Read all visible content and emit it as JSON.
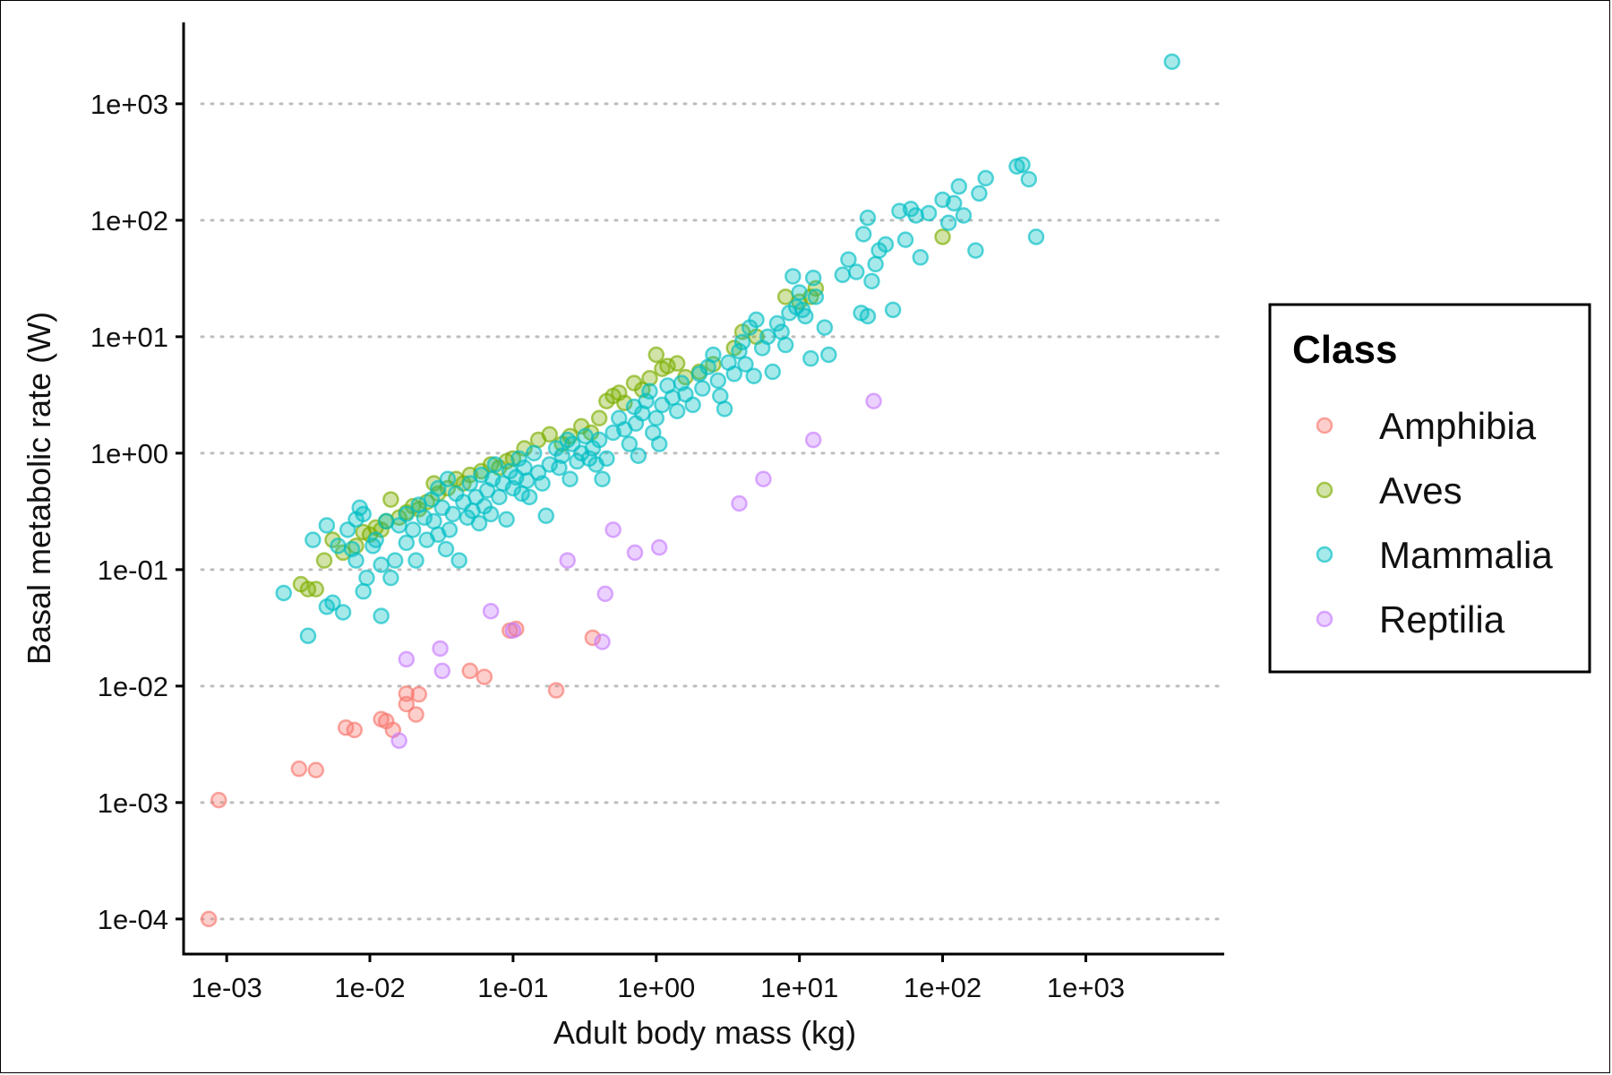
{
  "chart_data": {
    "type": "scatter",
    "xlabel": "Adult body mass (kg)",
    "ylabel": "Basal metabolic rate (W)",
    "x_scale": "log10",
    "y_scale": "log10",
    "xlim": [
      0.0005,
      9000
    ],
    "ylim": [
      5e-05,
      5000
    ],
    "x_ticks": [
      "1e-03",
      "1e-02",
      "1e-01",
      "1e+00",
      "1e+01",
      "1e+02",
      "1e+03"
    ],
    "x_tick_values": [
      0.001,
      0.01,
      0.1,
      1,
      10,
      100,
      1000
    ],
    "y_ticks": [
      "1e-04",
      "1e-03",
      "1e-02",
      "1e-01",
      "1e+00",
      "1e+01",
      "1e+02",
      "1e+03"
    ],
    "y_tick_values": [
      0.0001,
      0.001,
      0.01,
      0.1,
      1,
      10,
      100,
      1000
    ],
    "grid": "horizontal dotted",
    "legend": {
      "title": "Class",
      "placement": "right",
      "entries": [
        "Amphibia",
        "Aves",
        "Mammalia",
        "Reptilia"
      ]
    },
    "series": [
      {
        "name": "Amphibia",
        "color": "#F8766D",
        "points": [
          [
            0.00075,
            0.0001
          ],
          [
            0.00088,
            0.00105
          ],
          [
            0.0032,
            0.00195
          ],
          [
            0.0042,
            0.0019
          ],
          [
            0.0068,
            0.0044
          ],
          [
            0.0078,
            0.0042
          ],
          [
            0.012,
            0.0052
          ],
          [
            0.013,
            0.005
          ],
          [
            0.0145,
            0.0042
          ],
          [
            0.018,
            0.0086
          ],
          [
            0.018,
            0.007
          ],
          [
            0.021,
            0.0057
          ],
          [
            0.022,
            0.0085
          ],
          [
            0.05,
            0.0135
          ],
          [
            0.063,
            0.012
          ],
          [
            0.105,
            0.031
          ],
          [
            0.095,
            0.03
          ],
          [
            0.2,
            0.0092
          ],
          [
            0.36,
            0.026
          ]
        ]
      },
      {
        "name": "Aves",
        "color": "#7CAE00",
        "points": [
          [
            0.0033,
            0.075
          ],
          [
            0.0037,
            0.068
          ],
          [
            0.0042,
            0.068
          ],
          [
            0.0048,
            0.12
          ],
          [
            0.0055,
            0.18
          ],
          [
            0.0065,
            0.14
          ],
          [
            0.008,
            0.16
          ],
          [
            0.009,
            0.21
          ],
          [
            0.01,
            0.2
          ],
          [
            0.011,
            0.23
          ],
          [
            0.012,
            0.22
          ],
          [
            0.013,
            0.26
          ],
          [
            0.014,
            0.4
          ],
          [
            0.016,
            0.28
          ],
          [
            0.018,
            0.31
          ],
          [
            0.02,
            0.35
          ],
          [
            0.022,
            0.33
          ],
          [
            0.025,
            0.38
          ],
          [
            0.028,
            0.55
          ],
          [
            0.03,
            0.45
          ],
          [
            0.035,
            0.5
          ],
          [
            0.04,
            0.6
          ],
          [
            0.045,
            0.55
          ],
          [
            0.05,
            0.65
          ],
          [
            0.06,
            0.7
          ],
          [
            0.07,
            0.8
          ],
          [
            0.08,
            0.75
          ],
          [
            0.09,
            0.85
          ],
          [
            0.1,
            0.9
          ],
          [
            0.12,
            1.1
          ],
          [
            0.15,
            1.3
          ],
          [
            0.18,
            1.45
          ],
          [
            0.22,
            1.2
          ],
          [
            0.25,
            1.4
          ],
          [
            0.3,
            1.7
          ],
          [
            0.35,
            1.5
          ],
          [
            0.4,
            2.0
          ],
          [
            0.45,
            2.8
          ],
          [
            0.5,
            3.1
          ],
          [
            0.55,
            3.3
          ],
          [
            0.6,
            2.7
          ],
          [
            0.7,
            4.0
          ],
          [
            0.8,
            3.5
          ],
          [
            0.9,
            4.4
          ],
          [
            1.0,
            7.0
          ],
          [
            1.1,
            5.3
          ],
          [
            1.2,
            5.6
          ],
          [
            1.4,
            5.9
          ],
          [
            1.6,
            4.5
          ],
          [
            2.0,
            5.0
          ],
          [
            2.5,
            5.8
          ],
          [
            3.5,
            8.0
          ],
          [
            4.0,
            11.0
          ],
          [
            5.0,
            10.0
          ],
          [
            8.0,
            22.0
          ],
          [
            10.0,
            20.0
          ],
          [
            12.0,
            22.0
          ],
          [
            13.0,
            26.0
          ],
          [
            100.0,
            72.0
          ]
        ]
      },
      {
        "name": "Mammalia",
        "color": "#00BFC4",
        "points": [
          [
            0.0025,
            0.063
          ],
          [
            0.0037,
            0.027
          ],
          [
            0.004,
            0.18
          ],
          [
            0.005,
            0.24
          ],
          [
            0.005,
            0.048
          ],
          [
            0.0055,
            0.052
          ],
          [
            0.006,
            0.16
          ],
          [
            0.0065,
            0.043
          ],
          [
            0.007,
            0.22
          ],
          [
            0.0075,
            0.15
          ],
          [
            0.008,
            0.27
          ],
          [
            0.008,
            0.12
          ],
          [
            0.0085,
            0.34
          ],
          [
            0.009,
            0.065
          ],
          [
            0.009,
            0.3
          ],
          [
            0.0095,
            0.085
          ],
          [
            0.0105,
            0.16
          ],
          [
            0.011,
            0.18
          ],
          [
            0.012,
            0.04
          ],
          [
            0.012,
            0.11
          ],
          [
            0.013,
            0.26
          ],
          [
            0.014,
            0.085
          ],
          [
            0.015,
            0.12
          ],
          [
            0.016,
            0.24
          ],
          [
            0.018,
            0.3
          ],
          [
            0.018,
            0.17
          ],
          [
            0.02,
            0.22
          ],
          [
            0.021,
            0.12
          ],
          [
            0.022,
            0.36
          ],
          [
            0.024,
            0.28
          ],
          [
            0.025,
            0.18
          ],
          [
            0.027,
            0.4
          ],
          [
            0.028,
            0.26
          ],
          [
            0.03,
            0.2
          ],
          [
            0.03,
            0.5
          ],
          [
            0.032,
            0.34
          ],
          [
            0.034,
            0.15
          ],
          [
            0.035,
            0.6
          ],
          [
            0.036,
            0.22
          ],
          [
            0.038,
            0.3
          ],
          [
            0.04,
            0.45
          ],
          [
            0.042,
            0.12
          ],
          [
            0.045,
            0.38
          ],
          [
            0.048,
            0.28
          ],
          [
            0.05,
            0.55
          ],
          [
            0.052,
            0.32
          ],
          [
            0.055,
            0.42
          ],
          [
            0.058,
            0.25
          ],
          [
            0.06,
            0.65
          ],
          [
            0.063,
            0.35
          ],
          [
            0.066,
            0.48
          ],
          [
            0.07,
            0.3
          ],
          [
            0.072,
            0.6
          ],
          [
            0.075,
            0.8
          ],
          [
            0.08,
            0.42
          ],
          [
            0.085,
            0.55
          ],
          [
            0.09,
            0.27
          ],
          [
            0.095,
            0.7
          ],
          [
            0.1,
            0.5
          ],
          [
            0.105,
            0.62
          ],
          [
            0.11,
            0.9
          ],
          [
            0.115,
            0.45
          ],
          [
            0.12,
            0.75
          ],
          [
            0.125,
            0.58
          ],
          [
            0.13,
            0.42
          ],
          [
            0.14,
            1.0
          ],
          [
            0.15,
            0.68
          ],
          [
            0.16,
            0.55
          ],
          [
            0.17,
            0.29
          ],
          [
            0.18,
            0.8
          ],
          [
            0.2,
            1.1
          ],
          [
            0.21,
            0.75
          ],
          [
            0.22,
            0.95
          ],
          [
            0.24,
            1.3
          ],
          [
            0.25,
            0.6
          ],
          [
            0.26,
            1.2
          ],
          [
            0.28,
            0.85
          ],
          [
            0.3,
            1.0
          ],
          [
            0.32,
            1.4
          ],
          [
            0.34,
            0.9
          ],
          [
            0.36,
            1.1
          ],
          [
            0.38,
            0.8
          ],
          [
            0.4,
            1.3
          ],
          [
            0.42,
            0.6
          ],
          [
            0.45,
            0.9
          ],
          [
            0.5,
            1.5
          ],
          [
            0.55,
            2.0
          ],
          [
            0.6,
            1.6
          ],
          [
            0.65,
            1.2
          ],
          [
            0.7,
            2.5
          ],
          [
            0.72,
            1.8
          ],
          [
            0.75,
            0.95
          ],
          [
            0.8,
            2.2
          ],
          [
            0.85,
            2.8
          ],
          [
            0.9,
            3.4
          ],
          [
            0.95,
            1.5
          ],
          [
            1.0,
            2.0
          ],
          [
            1.05,
            1.2
          ],
          [
            1.1,
            2.6
          ],
          [
            1.2,
            3.8
          ],
          [
            1.3,
            3.0
          ],
          [
            1.4,
            2.3
          ],
          [
            1.5,
            4.0
          ],
          [
            1.6,
            3.2
          ],
          [
            1.8,
            2.6
          ],
          [
            2.0,
            4.8
          ],
          [
            2.1,
            3.6
          ],
          [
            2.3,
            5.5
          ],
          [
            2.5,
            7.0
          ],
          [
            2.7,
            4.2
          ],
          [
            2.8,
            3.1
          ],
          [
            3.0,
            2.4
          ],
          [
            3.2,
            6.0
          ],
          [
            3.5,
            4.8
          ],
          [
            3.8,
            7.5
          ],
          [
            4.0,
            9.0
          ],
          [
            4.2,
            5.8
          ],
          [
            4.5,
            12.0
          ],
          [
            4.8,
            4.6
          ],
          [
            5.0,
            14.0
          ],
          [
            5.5,
            8.0
          ],
          [
            6.0,
            10.0
          ],
          [
            6.5,
            5.0
          ],
          [
            7.0,
            13.0
          ],
          [
            7.5,
            11.0
          ],
          [
            8.0,
            8.5
          ],
          [
            8.5,
            16.0
          ],
          [
            9.0,
            33.0
          ],
          [
            9.5,
            18.0
          ],
          [
            10.0,
            24.0
          ],
          [
            10.5,
            17.0
          ],
          [
            11.0,
            15.0
          ],
          [
            12.0,
            6.5
          ],
          [
            12.5,
            32.0
          ],
          [
            13.0,
            22.0
          ],
          [
            15.0,
            12.0
          ],
          [
            16.0,
            7.0
          ],
          [
            20.0,
            34.0
          ],
          [
            22.0,
            46.0
          ],
          [
            25.0,
            36.0
          ],
          [
            27.0,
            16.0
          ],
          [
            28.0,
            76.0
          ],
          [
            30.0,
            15.0
          ],
          [
            30.0,
            105.0
          ],
          [
            32.0,
            30.0
          ],
          [
            34.0,
            42.0
          ],
          [
            36.0,
            55.0
          ],
          [
            40.0,
            62.0
          ],
          [
            45.0,
            17.0
          ],
          [
            50.0,
            120.0
          ],
          [
            55.0,
            68.0
          ],
          [
            60.0,
            125.0
          ],
          [
            65.0,
            110.0
          ],
          [
            70.0,
            48.0
          ],
          [
            80.0,
            115.0
          ],
          [
            100.0,
            150.0
          ],
          [
            110.0,
            95.0
          ],
          [
            120.0,
            140.0
          ],
          [
            130.0,
            195.0
          ],
          [
            140.0,
            110.0
          ],
          [
            170.0,
            55.0
          ],
          [
            180.0,
            170.0
          ],
          [
            200.0,
            230.0
          ],
          [
            330.0,
            290.0
          ],
          [
            360.0,
            300.0
          ],
          [
            400.0,
            225.0
          ],
          [
            450.0,
            72.0
          ],
          [
            4000.0,
            2300.0
          ]
        ]
      },
      {
        "name": "Reptilia",
        "color": "#C77CFF",
        "points": [
          [
            0.016,
            0.0034
          ],
          [
            0.018,
            0.017
          ],
          [
            0.031,
            0.021
          ],
          [
            0.032,
            0.0135
          ],
          [
            0.07,
            0.044
          ],
          [
            0.1,
            0.03
          ],
          [
            0.24,
            0.12
          ],
          [
            0.42,
            0.024
          ],
          [
            0.44,
            0.062
          ],
          [
            0.5,
            0.22
          ],
          [
            0.71,
            0.14
          ],
          [
            1.05,
            0.155
          ],
          [
            3.8,
            0.37
          ],
          [
            5.6,
            0.6
          ],
          [
            12.5,
            1.3
          ],
          [
            33.0,
            2.8
          ]
        ]
      }
    ]
  }
}
